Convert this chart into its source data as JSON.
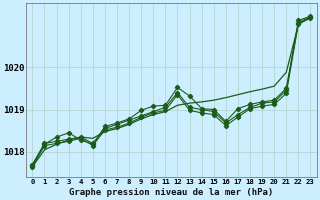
{
  "title": "Graphe pression niveau de la mer (hPa)",
  "bg_color": "#cceeff",
  "grid_color": "#b8d8d8",
  "line_color": "#1a5c1a",
  "x_labels": [
    "0",
    "1",
    "2",
    "3",
    "4",
    "5",
    "6",
    "7",
    "8",
    "9",
    "10",
    "11",
    "12",
    "13",
    "14",
    "15",
    "16",
    "17",
    "18",
    "19",
    "20",
    "21",
    "22",
    "23"
  ],
  "ylim": [
    1017.4,
    1021.5
  ],
  "yticks": [
    1018,
    1019,
    1020
  ],
  "hours": [
    0,
    1,
    2,
    3,
    4,
    5,
    6,
    7,
    8,
    9,
    10,
    11,
    12,
    13,
    14,
    15,
    16,
    17,
    18,
    19,
    20,
    21,
    22,
    23
  ],
  "series1": [
    1017.7,
    1018.2,
    1018.25,
    1018.3,
    1018.35,
    1018.2,
    1018.55,
    1018.65,
    1018.75,
    1018.85,
    1018.95,
    1019.05,
    1019.4,
    1019.05,
    1019.0,
    1018.95,
    1018.68,
    1018.88,
    1019.05,
    1019.15,
    1019.18,
    1019.45,
    1021.1,
    1021.2
  ],
  "series2": [
    1017.7,
    1018.18,
    1018.35,
    1018.45,
    1018.28,
    1018.18,
    1018.6,
    1018.68,
    1018.78,
    1018.98,
    1019.08,
    1019.1,
    1019.52,
    1019.32,
    1019.02,
    1019.0,
    1018.72,
    1019.02,
    1019.12,
    1019.18,
    1019.22,
    1019.5,
    1021.05,
    1021.18
  ],
  "series3": [
    1017.65,
    1018.15,
    1018.2,
    1018.25,
    1018.32,
    1018.15,
    1018.52,
    1018.58,
    1018.68,
    1018.82,
    1018.92,
    1018.98,
    1019.35,
    1018.98,
    1018.92,
    1018.88,
    1018.62,
    1018.82,
    1019.02,
    1019.08,
    1019.12,
    1019.38,
    1021.02,
    1021.15
  ],
  "trend": [
    1017.65,
    1018.05,
    1018.18,
    1018.28,
    1018.35,
    1018.32,
    1018.48,
    1018.55,
    1018.65,
    1018.78,
    1018.88,
    1018.95,
    1019.1,
    1019.15,
    1019.18,
    1019.22,
    1019.28,
    1019.35,
    1019.42,
    1019.48,
    1019.55,
    1019.88,
    1021.0,
    1021.2
  ]
}
